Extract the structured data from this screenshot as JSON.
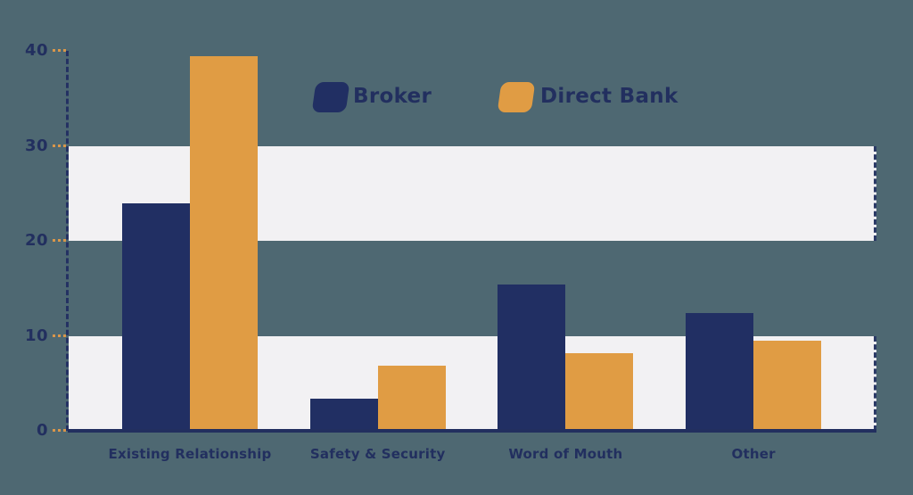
{
  "chart_data": {
    "type": "bar",
    "title": "",
    "categories": [
      "Existing Relationship",
      "Safety & Security",
      "Word of Mouth",
      "Other"
    ],
    "series": [
      {
        "name": "Broker",
        "color": "#212f63",
        "values": [
          23.9,
          3.4,
          15.4,
          12.4
        ]
      },
      {
        "name": "Direct Bank",
        "color": "#e09c44",
        "values": [
          39.4,
          6.9,
          8.2,
          9.5
        ]
      }
    ],
    "ylim": [
      0,
      40
    ],
    "yticks": [
      0,
      10,
      20,
      30,
      40
    ],
    "stripe_bands": [
      [
        0,
        10
      ],
      [
        20,
        30
      ]
    ],
    "legend_position": "top-center",
    "grid": "banded-background",
    "colors": {
      "background": "#4e6872",
      "band": "#f2f1f3",
      "axis_dash": "#243163",
      "tick_dash": "#d9964a",
      "baseline": "#222f5f",
      "text": "#222f5f"
    }
  }
}
